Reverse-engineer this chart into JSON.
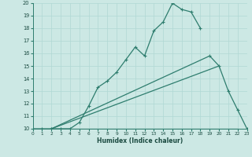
{
  "xlabel": "Humidex (Indice chaleur)",
  "bg_color": "#cce8e4",
  "grid_color": "#b0d8d4",
  "line_color": "#2e7d6e",
  "xlim": [
    0,
    23
  ],
  "ylim": [
    10,
    20
  ],
  "xticks": [
    0,
    1,
    2,
    3,
    4,
    5,
    6,
    7,
    8,
    9,
    10,
    11,
    12,
    13,
    14,
    15,
    16,
    17,
    18,
    19,
    20,
    21,
    22,
    23
  ],
  "yticks": [
    10,
    11,
    12,
    13,
    14,
    15,
    16,
    17,
    18,
    19,
    20
  ],
  "curve1_x": [
    0,
    1,
    2,
    3,
    4,
    5,
    6,
    7,
    8,
    9,
    10,
    11,
    12,
    13,
    14,
    15,
    16,
    17,
    18
  ],
  "curve1_y": [
    10,
    10,
    10,
    10,
    10,
    10.5,
    11.8,
    13.3,
    13.8,
    14.5,
    15.5,
    16.5,
    15.8,
    17.8,
    18.5,
    20.0,
    19.5,
    19.3,
    18.0
  ],
  "curve2_x": [
    2,
    19,
    20,
    21,
    22,
    23
  ],
  "curve2_y": [
    10,
    15.8,
    15.0,
    13.0,
    11.5,
    10.0
  ],
  "line1_x": [
    2,
    20
  ],
  "line1_y": [
    10,
    15.0
  ],
  "line2_x": [
    2,
    22
  ],
  "line2_y": [
    10,
    10
  ]
}
